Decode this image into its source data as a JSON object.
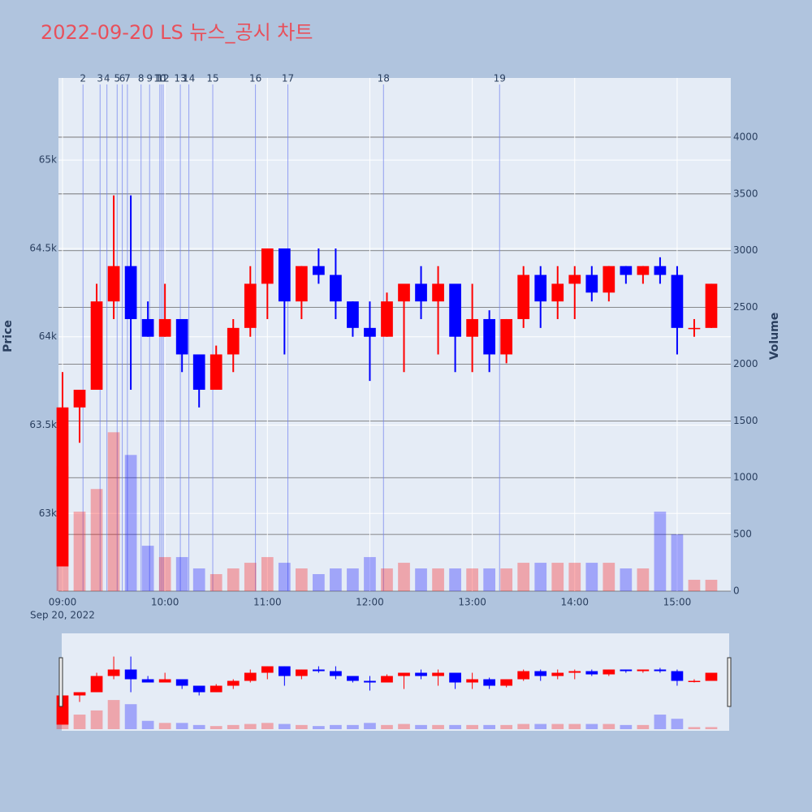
{
  "chart_data": {
    "type": "candlestick",
    "title": "2022-09-20 LS 뉴스_공시 차트",
    "y_label": "Price",
    "y2_label": "Volume",
    "x_date_label": "Sep 20, 2022",
    "increasing_color": "#ff0000",
    "decreasing_color": "#0000ff",
    "x": [
      "09:00",
      "09:10",
      "09:20",
      "09:30",
      "09:40",
      "09:50",
      "10:00",
      "10:10",
      "10:20",
      "10:30",
      "10:40",
      "10:50",
      "11:00",
      "11:10",
      "11:20",
      "11:30",
      "11:40",
      "11:50",
      "12:00",
      "12:10",
      "12:20",
      "12:30",
      "12:40",
      "12:50",
      "13:00",
      "13:10",
      "13:20",
      "13:30",
      "13:40",
      "13:50",
      "14:00",
      "14:10",
      "14:20",
      "14:30",
      "14:40",
      "14:50",
      "15:00",
      "15:10",
      "15:20"
    ],
    "open": [
      62700,
      63600,
      63700,
      64200,
      64400,
      64100,
      64000,
      64100,
      63900,
      63700,
      63900,
      64050,
      64300,
      64500,
      64200,
      64400,
      64350,
      64200,
      64050,
      64000,
      64200,
      64300,
      64200,
      64300,
      64000,
      64100,
      63900,
      64100,
      64350,
      64200,
      64300,
      64350,
      64250,
      64400,
      64350,
      64400,
      64350,
      64050,
      64050
    ],
    "high": [
      63800,
      63700,
      64300,
      64800,
      64800,
      64200,
      64300,
      64100,
      63900,
      63950,
      64100,
      64400,
      64500,
      64500,
      64400,
      64500,
      64500,
      64200,
      64200,
      64250,
      64300,
      64400,
      64400,
      64300,
      64300,
      64150,
      64100,
      64400,
      64400,
      64400,
      64400,
      64400,
      64400,
      64400,
      64400,
      64450,
      64400,
      64100,
      64300
    ],
    "low": [
      62700,
      63400,
      63700,
      64100,
      63700,
      64000,
      64000,
      63800,
      63600,
      63700,
      63800,
      64000,
      64100,
      63900,
      64100,
      64300,
      64100,
      64000,
      63750,
      64000,
      63800,
      64100,
      63900,
      63800,
      63800,
      63800,
      63850,
      64050,
      64050,
      64100,
      64100,
      64200,
      64200,
      64300,
      64300,
      64300,
      63900,
      64000,
      64050
    ],
    "close": [
      63600,
      63700,
      64200,
      64400,
      64100,
      64000,
      64100,
      63900,
      63700,
      63900,
      64050,
      64300,
      64500,
      64200,
      64400,
      64350,
      64200,
      64050,
      64000,
      64200,
      64300,
      64200,
      64300,
      64000,
      64100,
      63900,
      64100,
      64350,
      64200,
      64300,
      64350,
      64250,
      64400,
      64350,
      64400,
      64350,
      64050,
      64050,
      64300
    ],
    "volume": [
      1100,
      700,
      900,
      1400,
      1200,
      400,
      300,
      300,
      200,
      150,
      200,
      250,
      300,
      250,
      200,
      150,
      200,
      200,
      300,
      200,
      250,
      200,
      200,
      200,
      200,
      200,
      200,
      250,
      250,
      250,
      250,
      250,
      250,
      200,
      200,
      700,
      500,
      100,
      100
    ],
    "xlim": [
      "09:00",
      "15:30"
    ],
    "xticks": [
      "09:00",
      "10:00",
      "11:00",
      "12:00",
      "13:00",
      "14:00",
      "15:00"
    ],
    "ylim": [
      62560,
      65465
    ],
    "yticks": [
      {
        "value": 63000,
        "label": "63k"
      },
      {
        "value": 63500,
        "label": "63.5k"
      },
      {
        "value": 64000,
        "label": "64k"
      },
      {
        "value": 64500,
        "label": "64.5k"
      },
      {
        "value": 65000,
        "label": "65k"
      }
    ],
    "y2lim": [
      0,
      4522
    ],
    "y2ticks": [
      0,
      500,
      1000,
      1500,
      2000,
      2500,
      3000,
      3500,
      4000
    ],
    "annotations": [
      {
        "label": "2",
        "x": "09:12"
      },
      {
        "label": "3",
        "x": "09:22"
      },
      {
        "label": "4",
        "x": "09:26"
      },
      {
        "label": "5",
        "x": "09:32"
      },
      {
        "label": "6",
        "x": "09:35"
      },
      {
        "label": "7",
        "x": "09:38"
      },
      {
        "label": "8",
        "x": "09:46"
      },
      {
        "label": "9",
        "x": "09:51"
      },
      {
        "label": "10",
        "x": "09:57"
      },
      {
        "label": "11",
        "x": "09:58"
      },
      {
        "label": "12",
        "x": "09:59"
      },
      {
        "label": "13",
        "x": "10:09"
      },
      {
        "label": "14",
        "x": "10:14"
      },
      {
        "label": "15",
        "x": "10:28"
      },
      {
        "label": "16",
        "x": "10:53"
      },
      {
        "label": "17",
        "x": "11:12"
      },
      {
        "label": "18",
        "x": "12:08"
      },
      {
        "label": "19",
        "x": "13:16"
      }
    ]
  }
}
